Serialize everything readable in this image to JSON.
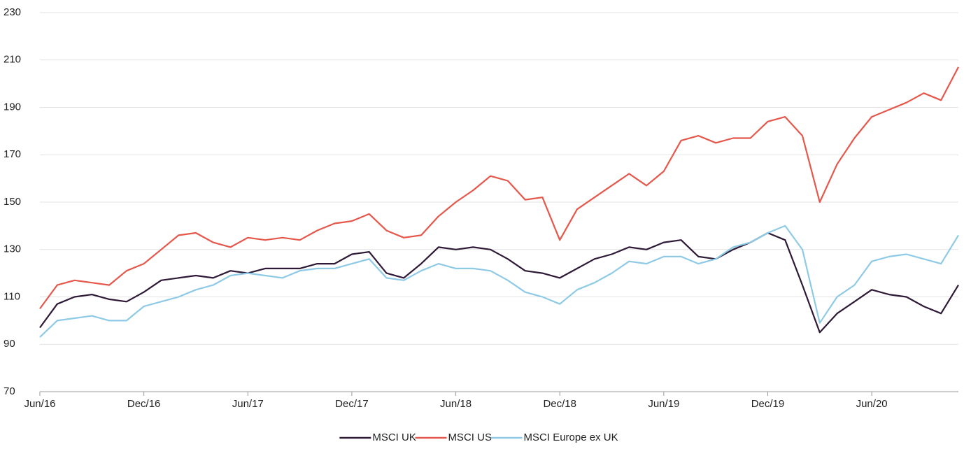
{
  "chart_data": {
    "type": "line",
    "categories": [
      "Jun/16",
      null,
      null,
      null,
      null,
      null,
      "Dec/16",
      null,
      null,
      null,
      null,
      null,
      "Jun/17",
      null,
      null,
      null,
      null,
      null,
      "Dec/17",
      null,
      null,
      null,
      null,
      null,
      "Jun/18",
      null,
      null,
      null,
      null,
      null,
      "Dec/18",
      null,
      null,
      null,
      null,
      null,
      "Jun/19",
      null,
      null,
      null,
      null,
      null,
      "Dec/19",
      null,
      null,
      null,
      null,
      null,
      "Jun/20",
      null,
      null,
      null,
      null,
      null
    ],
    "series": [
      {
        "name": "MSCI UK",
        "color": "#2e1a36",
        "values": [
          97,
          107,
          110,
          111,
          109,
          108,
          112,
          117,
          118,
          119,
          118,
          121,
          120,
          122,
          122,
          122,
          124,
          124,
          128,
          129,
          120,
          118,
          124,
          131,
          130,
          131,
          130,
          126,
          121,
          120,
          118,
          122,
          126,
          128,
          131,
          130,
          133,
          134,
          127,
          126,
          130,
          133,
          137,
          134,
          115,
          95,
          103,
          108,
          113,
          111,
          110,
          106,
          103,
          115
        ]
      },
      {
        "name": "MSCI US",
        "color": "#e5574a",
        "values": [
          105,
          115,
          117,
          116,
          115,
          121,
          124,
          130,
          136,
          137,
          133,
          131,
          135,
          134,
          135,
          134,
          138,
          141,
          142,
          145,
          138,
          135,
          136,
          144,
          150,
          155,
          161,
          159,
          151,
          152,
          134,
          147,
          152,
          157,
          162,
          157,
          163,
          176,
          178,
          175,
          177,
          177,
          184,
          186,
          178,
          150,
          166,
          177,
          186,
          189,
          192,
          196,
          193,
          207
        ]
      },
      {
        "name": "MSCI Europe ex UK",
        "color": "#8ecae6",
        "values": [
          93,
          100,
          101,
          102,
          100,
          100,
          106,
          108,
          110,
          113,
          115,
          119,
          120,
          119,
          118,
          121,
          122,
          122,
          124,
          126,
          118,
          117,
          121,
          124,
          122,
          122,
          121,
          117,
          112,
          110,
          107,
          113,
          116,
          120,
          125,
          124,
          127,
          127,
          124,
          126,
          131,
          133,
          137,
          140,
          130,
          99,
          110,
          115,
          125,
          127,
          128,
          126,
          124,
          136
        ]
      }
    ],
    "ylim": [
      70,
      230
    ],
    "yticks": [
      70,
      90,
      110,
      130,
      150,
      170,
      190,
      210,
      230
    ],
    "grid": true,
    "legend": "bottom"
  }
}
